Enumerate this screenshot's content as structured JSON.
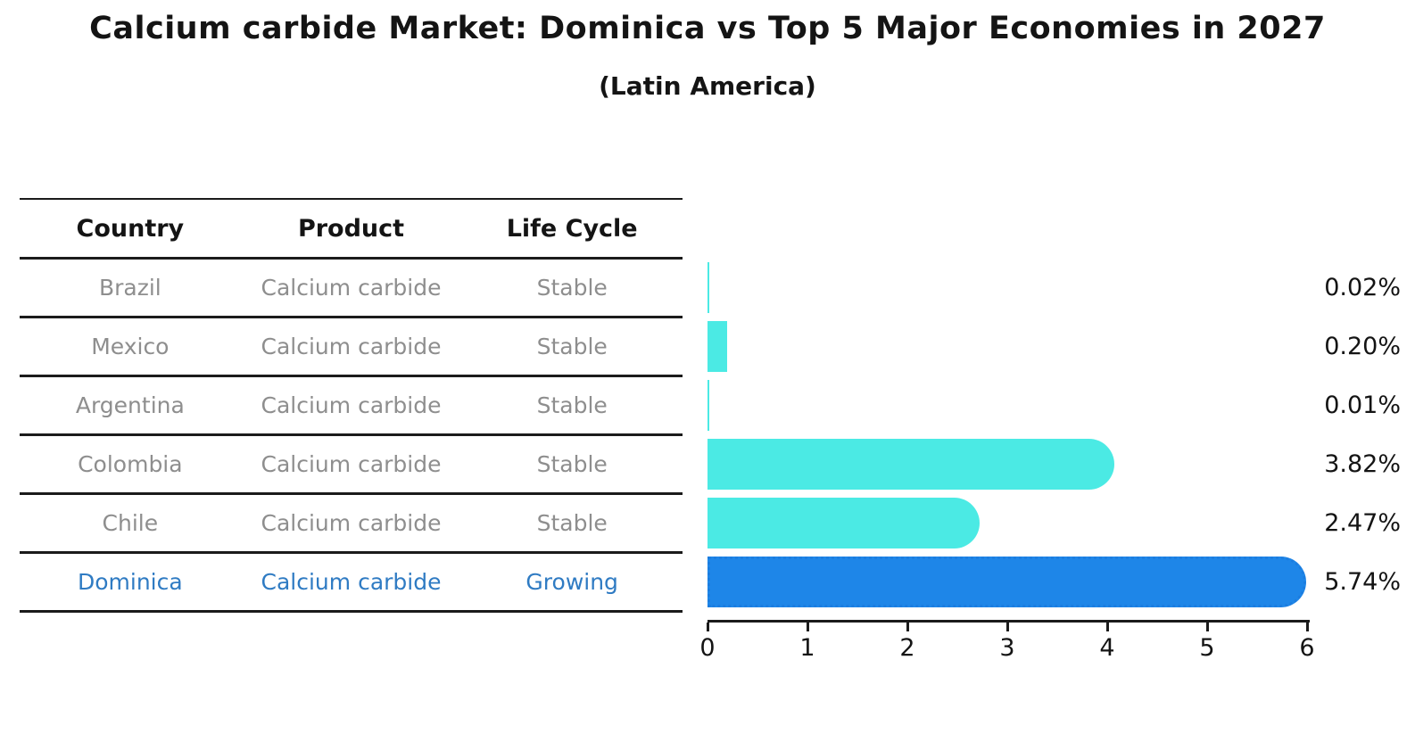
{
  "title": "Calcium carbide Market: Dominica vs Top 5 Major Economies in 2027",
  "subtitle": "(Latin America)",
  "table": {
    "headers": [
      "Country",
      "Product",
      "Life Cycle"
    ],
    "rows": [
      {
        "country": "Brazil",
        "product": "Calcium carbide",
        "life_cycle": "Stable",
        "highlight": false
      },
      {
        "country": "Mexico",
        "product": "Calcium carbide",
        "life_cycle": "Stable",
        "highlight": false
      },
      {
        "country": "Argentina",
        "product": "Calcium carbide",
        "life_cycle": "Stable",
        "highlight": false
      },
      {
        "country": "Colombia",
        "product": "Calcium carbide",
        "life_cycle": "Stable",
        "highlight": false
      },
      {
        "country": "Chile",
        "product": "Calcium carbide",
        "life_cycle": "Stable",
        "highlight": false
      },
      {
        "country": "Dominica",
        "product": "Calcium carbide",
        "life_cycle": "Growing",
        "highlight": true
      }
    ]
  },
  "chart_data": {
    "type": "bar",
    "orientation": "horizontal",
    "categories": [
      "Brazil",
      "Mexico",
      "Argentina",
      "Colombia",
      "Chile",
      "Dominica"
    ],
    "values": [
      0.02,
      0.2,
      0.01,
      3.82,
      2.47,
      5.74
    ],
    "value_labels": [
      "0.02%",
      "0.20%",
      "0.01%",
      "3.82%",
      "2.47%",
      "5.74%"
    ],
    "xlim": [
      0,
      6
    ],
    "x_ticks": [
      "0",
      "1",
      "2",
      "3",
      "4",
      "5",
      "6"
    ],
    "highlight_index": 5,
    "legend": "none",
    "grid": "off"
  },
  "colors": {
    "bar_default": "#4beae4",
    "bar_highlight": "#1e86e8",
    "bar_highlight_border": "#1b7de0",
    "row_text": "#8e8e8e",
    "highlight_text": "#2f7bc3",
    "axis": "#1b1b1b",
    "title_text": "#141414"
  }
}
